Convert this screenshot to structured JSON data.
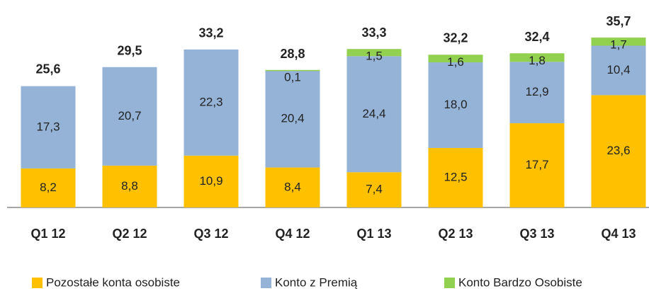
{
  "chart_data": {
    "type": "stacked_bar",
    "categories": [
      "Q1 12",
      "Q2 12",
      "Q3 12",
      "Q4 12",
      "Q1 13",
      "Q2 13",
      "Q3 13",
      "Q4 13"
    ],
    "series": [
      {
        "name": "Pozostałe konta osobiste",
        "color": "#FFC000",
        "values": [
          8.2,
          8.8,
          10.9,
          8.4,
          7.4,
          12.5,
          17.7,
          23.6
        ],
        "value_labels": [
          "8,2",
          "8,8",
          "10,9",
          "8,4",
          "7,4",
          "12,5",
          "17,7",
          "23,6"
        ]
      },
      {
        "name": "Konto z Premią",
        "color": "#95B3D7",
        "values": [
          17.3,
          20.7,
          22.3,
          20.4,
          24.4,
          18.0,
          12.9,
          10.4
        ],
        "value_labels": [
          "17,3",
          "20,7",
          "22,3",
          "20,4",
          "24,4",
          "18,0",
          "12,9",
          "10,4"
        ]
      },
      {
        "name": "Konto Bardzo Osobiste",
        "color": "#92D050",
        "values": [
          null,
          null,
          null,
          0.1,
          1.5,
          1.6,
          1.8,
          1.7
        ],
        "value_labels": [
          null,
          null,
          null,
          "0,1",
          "1,5",
          "1,6",
          "1,8",
          "1,7"
        ]
      }
    ],
    "totals": [
      25.6,
      29.5,
      33.2,
      28.8,
      33.3,
      32.2,
      32.4,
      35.7
    ],
    "total_labels": [
      "25,6",
      "29,5",
      "33,2",
      "28,8",
      "33,3",
      "32,2",
      "32,4",
      "35,7"
    ],
    "legend": "bottom"
  }
}
